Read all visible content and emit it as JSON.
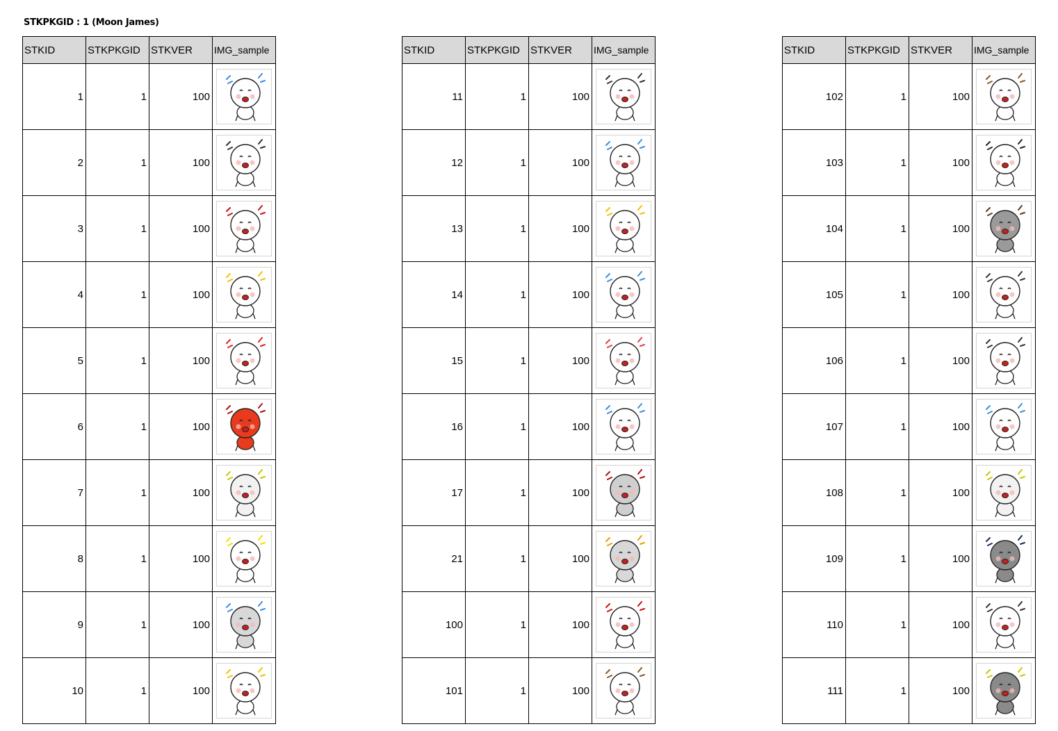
{
  "title": "STKPKGID : 1 (Moon James)",
  "columns": [
    "STKID",
    "STKPKGID",
    "STKVER",
    "IMG_sample"
  ],
  "tables": [
    {
      "rows": [
        {
          "stkid": "1",
          "stkpkgid": "1",
          "stkver": "100",
          "icon": "sleepy-sticker-icon",
          "face": "#ffffff",
          "accent": "#3a8fe0"
        },
        {
          "stkid": "2",
          "stkpkgid": "1",
          "stkver": "100",
          "icon": "grinning-sticker-icon",
          "face": "#ffffff",
          "accent": "#333333"
        },
        {
          "stkid": "3",
          "stkpkgid": "1",
          "stkver": "100",
          "icon": "shocked-sticker-icon",
          "face": "#ffffff",
          "accent": "#d01010"
        },
        {
          "stkid": "4",
          "stkpkgid": "1",
          "stkver": "100",
          "icon": "sparkle-eyes-sticker-icon",
          "face": "#ffffff",
          "accent": "#f2c200"
        },
        {
          "stkid": "5",
          "stkpkgid": "1",
          "stkver": "100",
          "icon": "flower-hearts-sticker-icon",
          "face": "#ffffff",
          "accent": "#e02020"
        },
        {
          "stkid": "6",
          "stkpkgid": "1",
          "stkver": "100",
          "icon": "angry-red-sticker-icon",
          "face": "#e83a1c",
          "accent": "#b01010"
        },
        {
          "stkid": "7",
          "stkpkgid": "1",
          "stkver": "100",
          "icon": "pointing-sticker-icon",
          "face": "#f2f2f2",
          "accent": "#c8c800"
        },
        {
          "stkid": "8",
          "stkpkgid": "1",
          "stkver": "100",
          "icon": "furious-sticker-icon",
          "face": "#ffffff",
          "accent": "#f2e000"
        },
        {
          "stkid": "9",
          "stkpkgid": "1",
          "stkver": "100",
          "icon": "crying-cloud-sticker-icon",
          "face": "#d8d8d8",
          "accent": "#3a8fe0"
        },
        {
          "stkid": "10",
          "stkpkgid": "1",
          "stkver": "100",
          "icon": "clenched-teeth-sticker-icon",
          "face": "#ffffff",
          "accent": "#f2c200"
        }
      ]
    },
    {
      "rows": [
        {
          "stkid": "11",
          "stkpkgid": "1",
          "stkver": "100",
          "icon": "singing-sticker-icon",
          "face": "#ffffff",
          "accent": "#333333"
        },
        {
          "stkid": "12",
          "stkpkgid": "1",
          "stkver": "100",
          "icon": "screaming-sticker-icon",
          "face": "#ffffff",
          "accent": "#3a8fe0"
        },
        {
          "stkid": "13",
          "stkpkgid": "1",
          "stkver": "100",
          "icon": "thinking-sticker-icon",
          "face": "#ffffff",
          "accent": "#f2c200"
        },
        {
          "stkid": "14",
          "stkpkgid": "1",
          "stkver": "100",
          "icon": "laughing-tears-sticker-icon",
          "face": "#ffffff",
          "accent": "#3a8fe0"
        },
        {
          "stkid": "15",
          "stkpkgid": "1",
          "stkver": "100",
          "icon": "tongue-out-sticker-icon",
          "face": "#ffffff",
          "accent": "#e04040"
        },
        {
          "stkid": "16",
          "stkpkgid": "1",
          "stkver": "100",
          "icon": "sobbing-sticker-icon",
          "face": "#ffffff",
          "accent": "#3a8fe0"
        },
        {
          "stkid": "17",
          "stkpkgid": "1",
          "stkver": "100",
          "icon": "depressed-sticker-icon",
          "face": "#cfcfcf",
          "accent": "#b01010"
        },
        {
          "stkid": "21",
          "stkpkgid": "1",
          "stkver": "100",
          "icon": "drooling-sticker-icon",
          "face": "#d8d8d8",
          "accent": "#f29a00"
        },
        {
          "stkid": "100",
          "stkpkgid": "1",
          "stkver": "100",
          "icon": "shouting-sticker-icon",
          "face": "#ffffff",
          "accent": "#d01010"
        },
        {
          "stkid": "101",
          "stkpkgid": "1",
          "stkver": "100",
          "icon": "tea-sticker-icon",
          "face": "#ffffff",
          "accent": "#8a5a2a"
        }
      ]
    },
    {
      "rows": [
        {
          "stkid": "102",
          "stkpkgid": "1",
          "stkver": "100",
          "icon": "shaking-sticker-icon",
          "face": "#ffffff",
          "accent": "#8a5a2a"
        },
        {
          "stkid": "103",
          "stkpkgid": "1",
          "stkver": "100",
          "icon": "headphones-sticker-icon",
          "face": "#ffffff",
          "accent": "#222222"
        },
        {
          "stkid": "104",
          "stkpkgid": "1",
          "stkver": "100",
          "icon": "sulking-sticker-icon",
          "face": "#9a9a9a",
          "accent": "#5a3a1a"
        },
        {
          "stkid": "105",
          "stkpkgid": "1",
          "stkver": "100",
          "icon": "frustrated-sticker-icon",
          "face": "#ffffff",
          "accent": "#333333"
        },
        {
          "stkid": "106",
          "stkpkgid": "1",
          "stkver": "100",
          "icon": "peeking-sticker-icon",
          "face": "#ffffff",
          "accent": "#333333"
        },
        {
          "stkid": "107",
          "stkpkgid": "1",
          "stkver": "100",
          "icon": "sweating-sticker-icon",
          "face": "#ffffff",
          "accent": "#3a8fe0"
        },
        {
          "stkid": "108",
          "stkpkgid": "1",
          "stkver": "100",
          "icon": "ghost-sticker-icon",
          "face": "#f2f2f2",
          "accent": "#c8c800"
        },
        {
          "stkid": "109",
          "stkpkgid": "1",
          "stkver": "100",
          "icon": "dark-suit-sticker-icon",
          "face": "#8a8a8a",
          "accent": "#1a2a5a"
        },
        {
          "stkid": "110",
          "stkpkgid": "1",
          "stkver": "100",
          "icon": "dancing-sticker-icon",
          "face": "#ffffff",
          "accent": "#333333"
        },
        {
          "stkid": "111",
          "stkpkgid": "1",
          "stkver": "100",
          "icon": "gloomy-sticker-icon",
          "face": "#8a8a8a",
          "accent": "#c8c800"
        }
      ]
    }
  ]
}
